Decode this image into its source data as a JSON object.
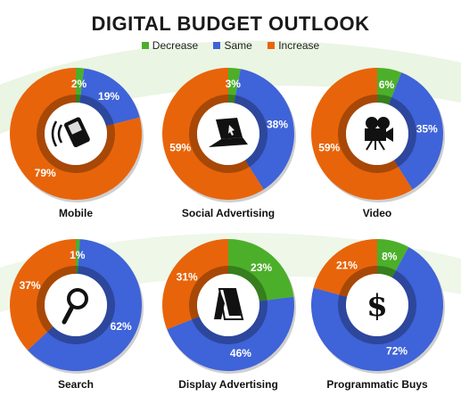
{
  "title": "DIGITAL BUDGET OUTLOOK",
  "legend": [
    {
      "label": "Decrease",
      "color": "#4caf2a"
    },
    {
      "label": "Same",
      "color": "#3f63d8"
    },
    {
      "label": "Increase",
      "color": "#e8640a"
    }
  ],
  "chart_data": [
    {
      "type": "pie",
      "title": "Mobile",
      "icon": "mobile-phone-icon",
      "categories": [
        "Decrease",
        "Same",
        "Increase"
      ],
      "values": [
        2,
        19,
        79
      ],
      "labels": [
        "2%",
        "19%",
        "79%"
      ]
    },
    {
      "type": "pie",
      "title": "Social Advertising",
      "icon": "laptop-icon",
      "categories": [
        "Decrease",
        "Same",
        "Increase"
      ],
      "values": [
        3,
        38,
        59
      ],
      "labels": [
        "3%",
        "38%",
        "59%"
      ]
    },
    {
      "type": "pie",
      "title": "Video",
      "icon": "video-camera-icon",
      "categories": [
        "Decrease",
        "Same",
        "Increase"
      ],
      "values": [
        6,
        35,
        59
      ],
      "labels": [
        "6%",
        "35%",
        "59%"
      ]
    },
    {
      "type": "pie",
      "title": "Search",
      "icon": "magnifier-icon",
      "categories": [
        "Decrease",
        "Same",
        "Increase"
      ],
      "values": [
        1,
        62,
        37
      ],
      "labels": [
        "1%",
        "62%",
        "37%"
      ]
    },
    {
      "type": "pie",
      "title": "Display  Advertising",
      "icon": "display-board-icon",
      "categories": [
        "Decrease",
        "Same",
        "Increase"
      ],
      "values": [
        23,
        46,
        31
      ],
      "labels": [
        "23%",
        "46%",
        "31%"
      ]
    },
    {
      "type": "pie",
      "title": "Programmatic Buys",
      "icon": "dollar-sign-icon",
      "categories": [
        "Decrease",
        "Same",
        "Increase"
      ],
      "values": [
        8,
        72,
        21
      ],
      "labels": [
        "8%",
        "72%",
        "21%"
      ]
    }
  ]
}
